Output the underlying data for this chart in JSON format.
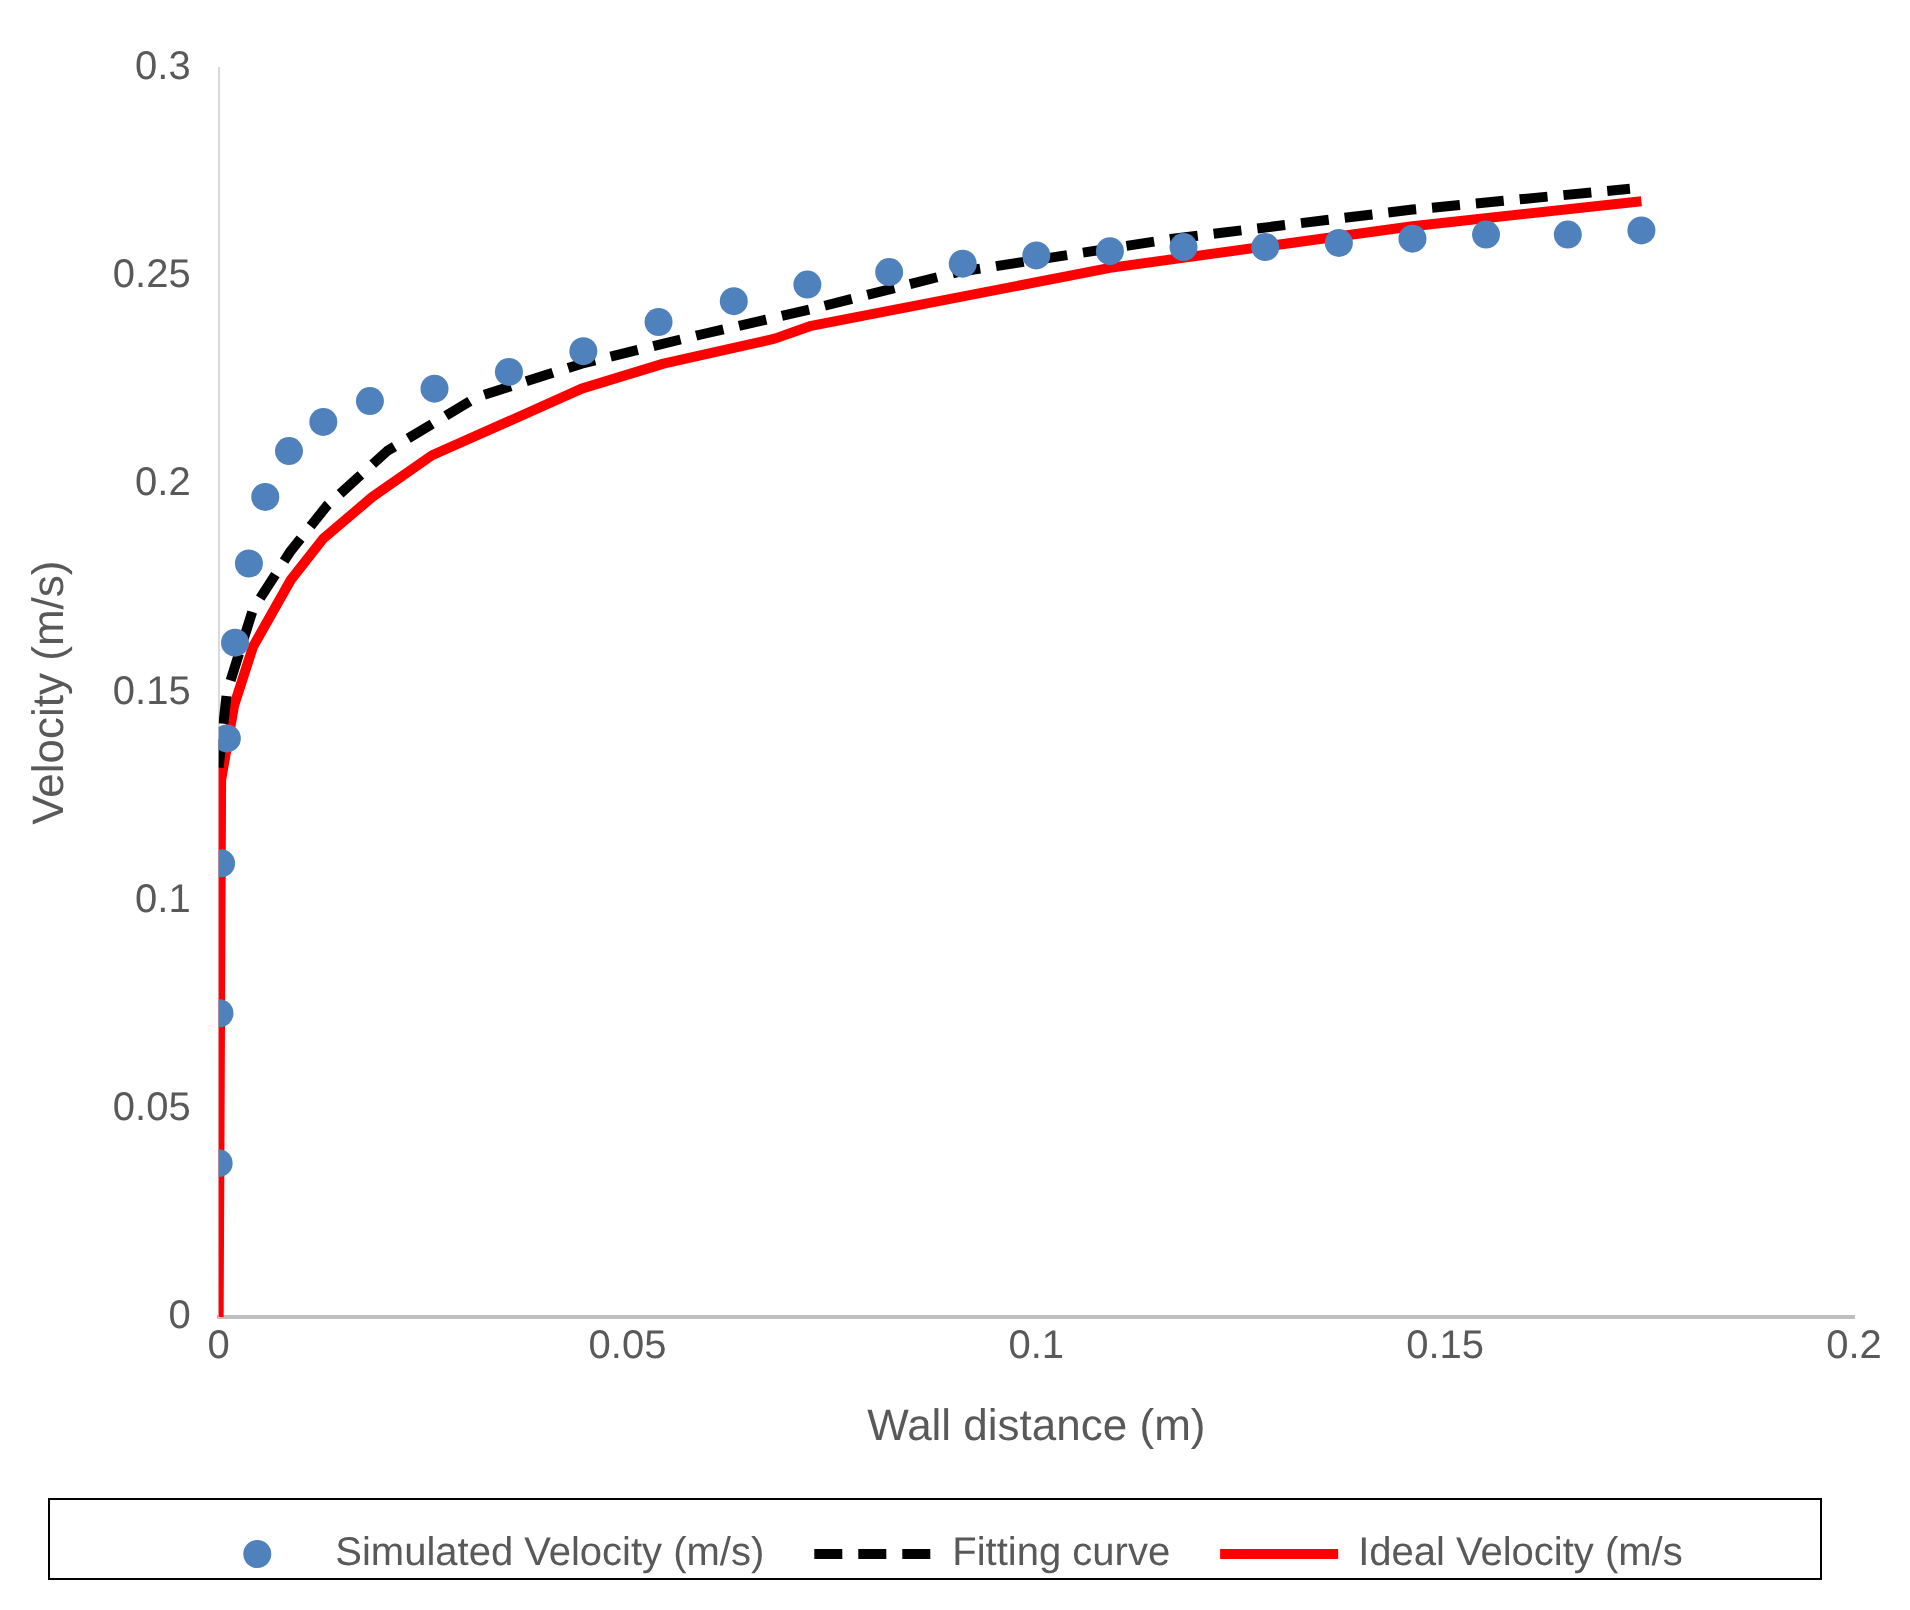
{
  "chart_data": {
    "type": "scatter",
    "xlabel": "Wall distance (m)",
    "ylabel": "Velocity (m/s)",
    "xlim": [
      0,
      0.2
    ],
    "xticks": [
      0,
      0.05,
      0.1,
      0.15,
      0.2
    ],
    "ylim": [
      0,
      0.3
    ],
    "yticks": [
      0,
      0.05,
      0.1,
      0.15,
      0.2,
      0.25,
      0.3
    ],
    "grid": false,
    "legend": "bottom",
    "series": [
      {
        "name": "Simulated Velocity (m/s)",
        "marker": "circle",
        "color": "#4f81bd",
        "x": [
          0,
          0.0001,
          0.0003,
          0.001,
          0.002,
          0.0037,
          0.0057,
          0.0086,
          0.0128,
          0.0185,
          0.0264,
          0.0355,
          0.0446,
          0.0538,
          0.063,
          0.072,
          0.082,
          0.091,
          0.1,
          0.109,
          0.118,
          0.128,
          0.137,
          0.146,
          0.155,
          0.165,
          0.174
        ],
        "values": [
          0.037,
          0.073,
          0.109,
          0.139,
          0.162,
          0.181,
          0.197,
          0.208,
          0.215,
          0.22,
          0.223,
          0.227,
          0.232,
          0.239,
          0.244,
          0.248,
          0.251,
          0.253,
          0.255,
          0.256,
          0.257,
          0.257,
          0.258,
          0.259,
          0.26,
          0.26,
          0.261
        ]
      },
      {
        "name": "Fitting curve",
        "type": "line",
        "marker": "none",
        "line_style": "dashed",
        "color": "#000000",
        "x": [
          0,
          0.001,
          0.0042,
          0.0088,
          0.0133,
          0.0206,
          0.0316,
          0.0444,
          0.059,
          0.0723,
          0.0904,
          0.1167,
          0.146,
          0.1726
        ],
        "values": [
          0.132,
          0.15,
          0.17,
          0.184,
          0.195,
          0.208,
          0.221,
          0.229,
          0.236,
          0.242,
          0.251,
          0.259,
          0.266,
          0.271
        ]
      },
      {
        "name": "Ideal Velocity (m/s",
        "type": "line",
        "marker": "none",
        "line_style": "solid",
        "color": "#ff0000",
        "x": [
          0,
          0.0003,
          0.0019,
          0.0042,
          0.0088,
          0.0128,
          0.0188,
          0.0261,
          0.0353,
          0.0444,
          0.0544,
          0.068,
          0.0723,
          0.109,
          0.146,
          0.174
        ],
        "values": [
          0,
          0.129,
          0.147,
          0.161,
          0.177,
          0.187,
          0.197,
          0.207,
          0.215,
          0.223,
          0.229,
          0.235,
          0.238,
          0.252,
          0.262,
          0.268
        ]
      }
    ]
  }
}
